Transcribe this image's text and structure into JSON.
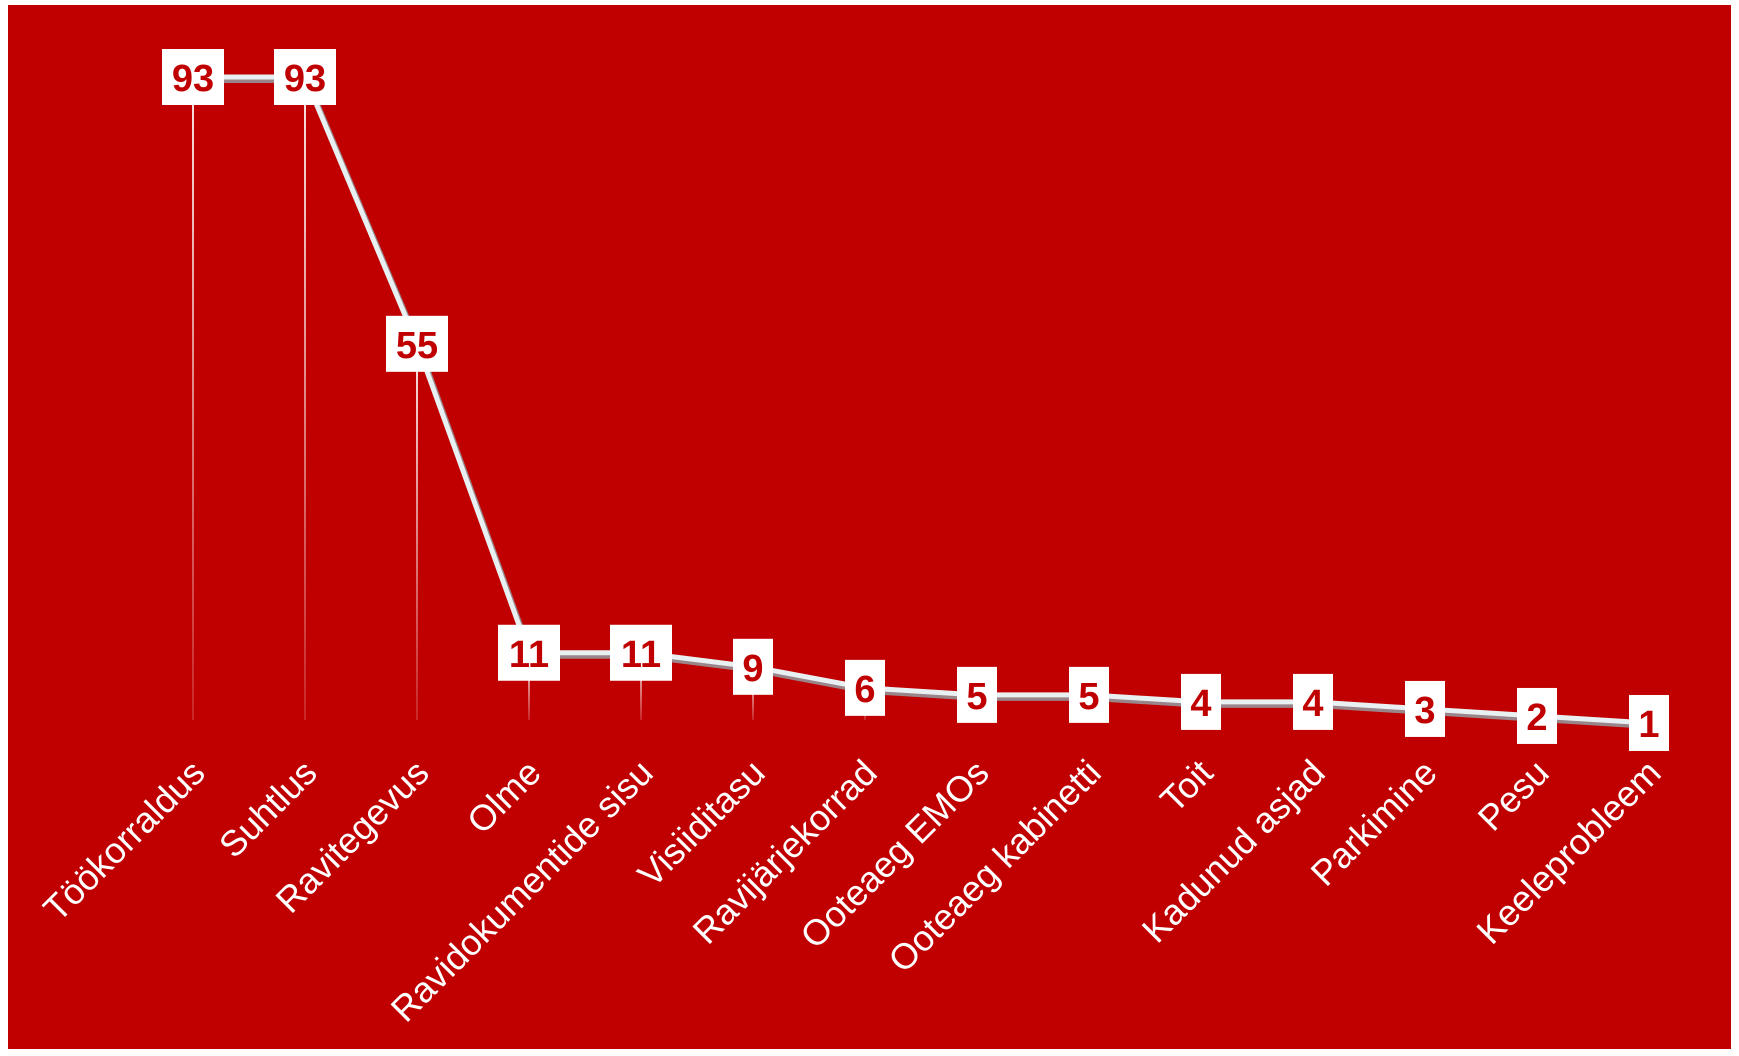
{
  "colors": {
    "background": "#c00000",
    "line": "#e9f0f2",
    "line_shadow": "#8fa6ac",
    "label_box": "#ffffff",
    "value_text": "#c00000",
    "category_text": "#ffffff"
  },
  "chart_data": {
    "type": "line",
    "title": "",
    "xlabel": "",
    "ylabel": "",
    "ylim": [
      0,
      100
    ],
    "grid": false,
    "legend": "none",
    "categories": [
      "Töökorraldus",
      "Suhtlus",
      "Ravitegevus",
      "Olme",
      "Ravidokumentide sisu",
      "Visiiditasu",
      "Ravijärjekorrad",
      "Ooteaeg EMOs",
      "Ooteaeg kabinetti",
      "Toit",
      "Kadunud asjad",
      "Parkimine",
      "Pesu",
      "Keeleprobleem"
    ],
    "values": [
      93,
      93,
      55,
      11,
      11,
      9,
      6,
      5,
      5,
      4,
      4,
      3,
      2,
      1
    ],
    "data_labels": true,
    "drop_lines": true
  }
}
